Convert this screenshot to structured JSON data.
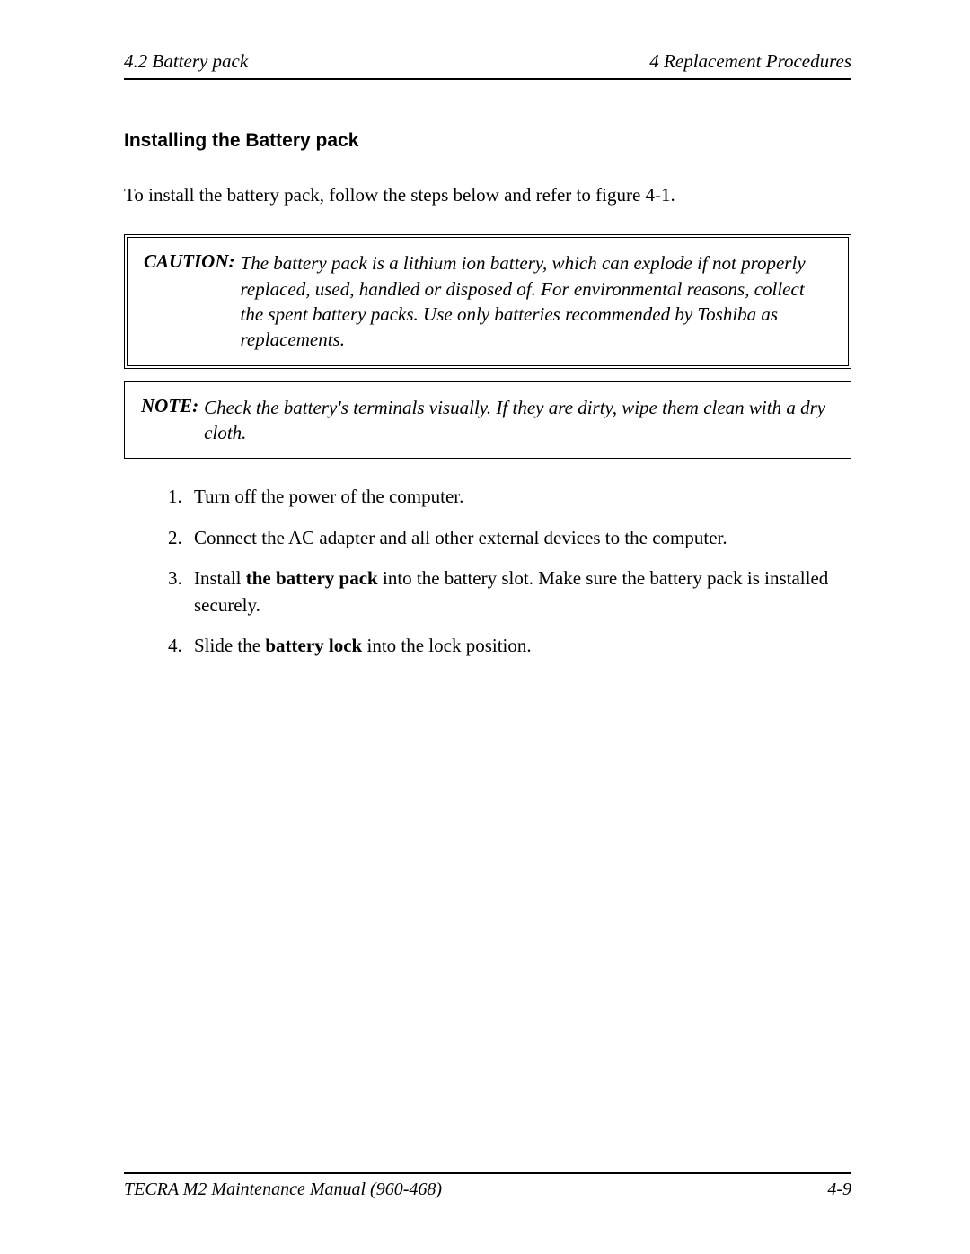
{
  "header": {
    "left": "4.2  Battery pack",
    "right": "4 Replacement Procedures"
  },
  "section_title": "Installing the Battery pack",
  "intro": "To install the battery pack, follow the steps below and refer to figure 4-1.",
  "caution": {
    "label": "CAUTION:",
    "text": "The battery pack is a lithium ion battery, which can explode if not properly replaced, used, handled or disposed of. For environmental reasons, collect the spent battery packs. Use only batteries recommended by Toshiba as replacements."
  },
  "note": {
    "label": "NOTE:",
    "text": "Check the battery's terminals visually. If they are dirty, wipe them clean with a dry cloth."
  },
  "steps": {
    "s1": "Turn off the power of the computer.",
    "s2": "Connect the AC adapter and all other external devices to the computer.",
    "s3a": "Install ",
    "s3b": "the battery pack",
    "s3c": " into the battery slot. Make sure the battery pack is installed securely.",
    "s4a": "Slide the ",
    "s4b": "battery lock",
    "s4c": " into the lock position."
  },
  "footer": {
    "left": "TECRA M2 Maintenance Manual (960-468)",
    "right": "4-9"
  }
}
